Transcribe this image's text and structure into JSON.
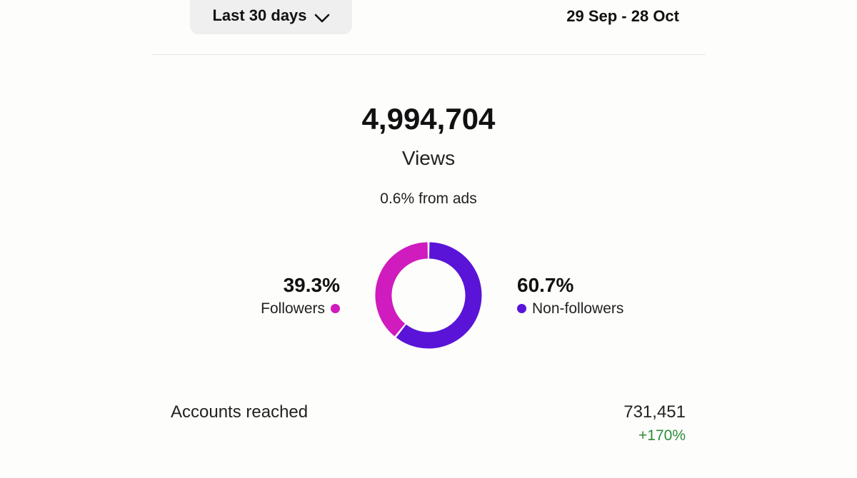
{
  "filter": {
    "period_label": "Last 30 days",
    "date_range": "29 Sep - 28 Oct"
  },
  "summary": {
    "total": "4,994,704",
    "metric_label": "Views",
    "ads_note": "0.6% from ads"
  },
  "breakdown": {
    "followers": {
      "percent_label": "39.3%",
      "label": "Followers",
      "share": 0.393,
      "color": "#d01bbe"
    },
    "non_followers": {
      "percent_label": "60.7%",
      "label": "Non-followers",
      "share": 0.607,
      "color": "#5a14d8"
    }
  },
  "accounts_reached": {
    "label": "Accounts reached",
    "value": "731,451",
    "change": "+170%",
    "change_color": "#2e8b3a"
  },
  "icons": {
    "period_chevron": "chevron-down-icon"
  }
}
